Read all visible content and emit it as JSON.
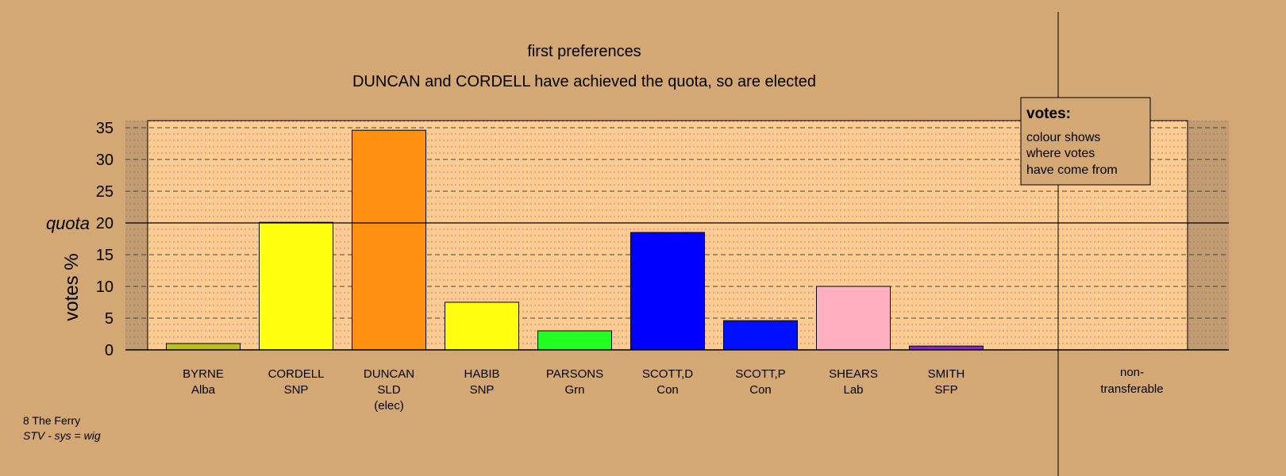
{
  "chart_data": {
    "type": "bar",
    "title": "first preferences",
    "subtitle": "DUNCAN and CORDELL have achieved the quota, so are elected",
    "ylabel": "votes %",
    "ylim": [
      0,
      36
    ],
    "yticks": [
      0,
      5,
      10,
      15,
      25,
      30,
      35
    ],
    "quota": 20,
    "quota_label": "quota",
    "quota_tick": "20",
    "categories": [
      {
        "name": "BYRNE",
        "party": "Alba",
        "extra": "",
        "value": 1.0,
        "color": "#BBC11F"
      },
      {
        "name": "CORDELL",
        "party": "SNP",
        "extra": "",
        "value": 20.1,
        "color": "#FFFF10"
      },
      {
        "name": "DUNCAN",
        "party": "SLD",
        "extra": "(elec)",
        "value": 34.6,
        "color": "#FF9010"
      },
      {
        "name": "HABIB",
        "party": "SNP",
        "extra": "",
        "value": 7.5,
        "color": "#FFFF10"
      },
      {
        "name": "PARSONS",
        "party": "Grn",
        "extra": "",
        "value": 3.0,
        "color": "#20FF20"
      },
      {
        "name": "SCOTT,D",
        "party": "Con",
        "extra": "",
        "value": 18.5,
        "color": "#0000FF"
      },
      {
        "name": "SCOTT,P",
        "party": "Con",
        "extra": "",
        "value": 4.6,
        "color": "#0010FF"
      },
      {
        "name": "SHEARS",
        "party": "Lab",
        "extra": "",
        "value": 10.0,
        "color": "#FFB0C0"
      },
      {
        "name": "SMITH",
        "party": "SFP",
        "extra": "",
        "value": 0.6,
        "color": "#9020D0"
      }
    ],
    "non_transferable": {
      "line1": "non-",
      "line2": "transferable",
      "value": 0
    },
    "legend": {
      "title": "votes:",
      "lines": [
        "colour shows",
        "where votes",
        "have come from"
      ]
    },
    "colors": {
      "background": "#D4A875",
      "plot_area": "#FFCB90",
      "margin_band": "#C29C70"
    }
  },
  "footer": {
    "ward": "8 The Ferry",
    "system": "STV - sys = wig"
  }
}
